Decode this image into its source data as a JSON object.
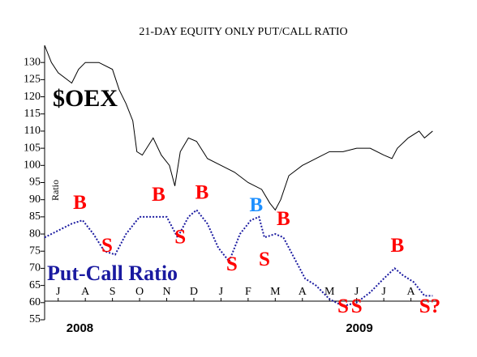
{
  "chart_data": {
    "type": "line",
    "title": "21-DAY EQUITY ONLY PUT/CALL RATIO",
    "ylabel": "Ratio",
    "ylim": [
      55,
      135
    ],
    "yticks": [
      55,
      60,
      65,
      70,
      75,
      80,
      85,
      90,
      95,
      100,
      105,
      110,
      115,
      120,
      125,
      130
    ],
    "xlim": [
      0,
      14.5
    ],
    "xticks": [
      {
        "value": 0.5,
        "label": "J"
      },
      {
        "value": 1.5,
        "label": "A"
      },
      {
        "value": 2.5,
        "label": "S"
      },
      {
        "value": 3.5,
        "label": "O"
      },
      {
        "value": 4.5,
        "label": "N"
      },
      {
        "value": 5.5,
        "label": "D"
      },
      {
        "value": 6.5,
        "label": "J"
      },
      {
        "value": 7.5,
        "label": "F"
      },
      {
        "value": 8.5,
        "label": "M"
      },
      {
        "value": 9.5,
        "label": "A"
      },
      {
        "value": 10.5,
        "label": "M"
      },
      {
        "value": 11.5,
        "label": "J"
      },
      {
        "value": 12.5,
        "label": "J"
      },
      {
        "value": 13.5,
        "label": "A"
      }
    ],
    "year_labels": [
      {
        "value": 1.3,
        "label": "2008"
      },
      {
        "value": 11.6,
        "label": "2009"
      }
    ],
    "series": [
      {
        "name": "$OEX",
        "color": "#000000",
        "x": [
          0,
          0.25,
          0.5,
          1,
          1.25,
          1.5,
          2,
          2.5,
          2.75,
          3,
          3.25,
          3.4,
          3.6,
          4,
          4.3,
          4.6,
          4.8,
          5,
          5.3,
          5.6,
          6,
          6.5,
          7,
          7.5,
          8,
          8.3,
          8.5,
          8.7,
          9,
          9.5,
          10,
          10.5,
          11,
          11.5,
          12,
          12.5,
          12.8,
          13,
          13.4,
          13.8,
          14,
          14.3
        ],
        "values": [
          135,
          130,
          127,
          124,
          128,
          130,
          130,
          128,
          122,
          118,
          113,
          104,
          103,
          108,
          103,
          100,
          94,
          104,
          108,
          107,
          102,
          100,
          98,
          95,
          93,
          89,
          87,
          90,
          97,
          100,
          102,
          104,
          104,
          105,
          105,
          103,
          102,
          105,
          108,
          110,
          108,
          110
        ]
      },
      {
        "name": "Put-Call Ratio",
        "color": "#1a1aa0",
        "x": [
          0,
          0.5,
          1,
          1.4,
          1.8,
          2.2,
          2.6,
          3,
          3.5,
          4,
          4.5,
          4.9,
          5.3,
          5.6,
          6,
          6.4,
          6.8,
          7.2,
          7.6,
          7.9,
          8.1,
          8.5,
          8.8,
          9.2,
          9.6,
          10,
          10.5,
          11,
          11.5,
          12,
          12.5,
          12.9,
          13.2,
          13.6,
          14,
          14.3
        ],
        "values": [
          79,
          81,
          83,
          84,
          80,
          75,
          74,
          80,
          85,
          85,
          85,
          79,
          85,
          87,
          83,
          76,
          72,
          80,
          84,
          85,
          79,
          80,
          79,
          73,
          67,
          65,
          61,
          59,
          60,
          63,
          67,
          70,
          68,
          66,
          62,
          62
        ]
      }
    ],
    "annotations": [
      {
        "text": "B",
        "x": 1.3,
        "y": 88.7,
        "color": "#ff0000"
      },
      {
        "text": "S",
        "x": 2.3,
        "y": 76.2,
        "color": "#ff0000"
      },
      {
        "text": "B",
        "x": 4.2,
        "y": 91,
        "color": "#ff0000"
      },
      {
        "text": "S",
        "x": 5,
        "y": 78.6,
        "color": "#ff0000"
      },
      {
        "text": "B",
        "x": 5.8,
        "y": 91.6,
        "color": "#ff0000"
      },
      {
        "text": "S",
        "x": 6.9,
        "y": 70.8,
        "color": "#ff0000"
      },
      {
        "text": "B",
        "x": 7.8,
        "y": 88,
        "color": "#1e90ff"
      },
      {
        "text": "S",
        "x": 8.1,
        "y": 72.2,
        "color": "#ff0000"
      },
      {
        "text": "B",
        "x": 8.8,
        "y": 84,
        "color": "#ff0000"
      },
      {
        "text": "S",
        "x": 11,
        "y": 58.5,
        "color": "#ff0000"
      },
      {
        "text": "S",
        "x": 11.5,
        "y": 58.5,
        "color": "#ff0000"
      },
      {
        "text": "B",
        "x": 13,
        "y": 76.2,
        "color": "#ff0000"
      },
      {
        "text": "S?",
        "x": 14.2,
        "y": 58.5,
        "color": "#ff0000"
      }
    ]
  }
}
